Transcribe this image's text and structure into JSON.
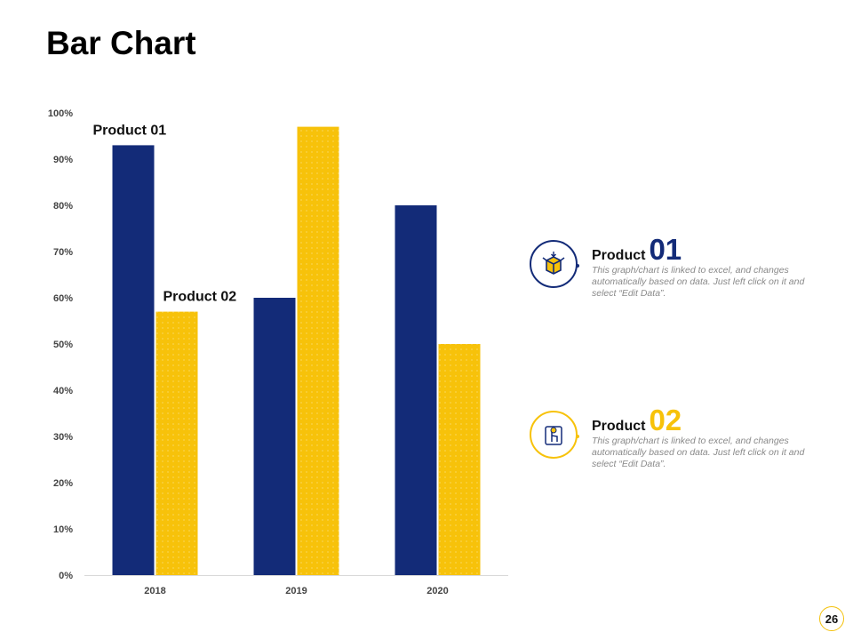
{
  "page": {
    "title": "Bar Chart",
    "page_number": "26"
  },
  "colors": {
    "product01": "#132b78",
    "product02": "#f7c20a",
    "axis": "#d9d9d9"
  },
  "chart_data": {
    "type": "bar",
    "categories": [
      "2018",
      "2019",
      "2020"
    ],
    "series": [
      {
        "name": "Product 01",
        "values": [
          93,
          60,
          80
        ]
      },
      {
        "name": "Product 02",
        "values": [
          57,
          97,
          50
        ]
      }
    ],
    "ylim": [
      0,
      100
    ],
    "yticks": [
      "0%",
      "10%",
      "20%",
      "30%",
      "40%",
      "50%",
      "60%",
      "70%",
      "80%",
      "90%",
      "100%"
    ],
    "title": "",
    "xlabel": "",
    "ylabel": "",
    "grid": false
  },
  "legend": [
    {
      "word": "Product",
      "number": "01",
      "icon": "open-box-icon",
      "description": "This graph/chart is linked to excel, and changes automatically based on data. Just left click on it and select “Edit Data”."
    },
    {
      "word": "Product",
      "number": "02",
      "icon": "hand-tap-box-icon",
      "description": "This graph/chart is linked to excel, and changes automatically based on data. Just left click on it and select “Edit Data”."
    }
  ]
}
